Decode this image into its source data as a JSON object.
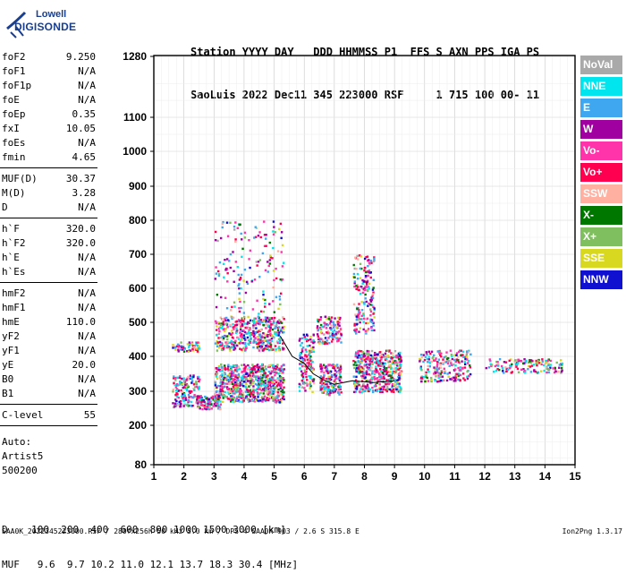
{
  "logo": {
    "line1": "Lowell",
    "line2": "DIGISONDE"
  },
  "header": {
    "line1": "Station YYYY DAY   DDD HHMMSS P1  FFS S AXN PPS IGA PS",
    "line2": "SaoLuis 2022 Dec11 345 223000 RSF     1 715 100 00- 11"
  },
  "params_group1": [
    {
      "k": "foF2",
      "v": "9.250"
    },
    {
      "k": "foF1",
      "v": "N/A"
    },
    {
      "k": "foF1p",
      "v": "N/A"
    },
    {
      "k": "foE",
      "v": "N/A"
    },
    {
      "k": "foEp",
      "v": "0.35"
    },
    {
      "k": "fxI",
      "v": "10.05"
    },
    {
      "k": "foEs",
      "v": "N/A"
    },
    {
      "k": "fmin",
      "v": "4.65"
    }
  ],
  "params_group2": [
    {
      "k": "MUF(D)",
      "v": "30.37"
    },
    {
      "k": "M(D)",
      "v": "3.28"
    },
    {
      "k": "D",
      "v": "N/A"
    }
  ],
  "params_group3": [
    {
      "k": "h`F",
      "v": "320.0"
    },
    {
      "k": "h`F2",
      "v": "320.0"
    },
    {
      "k": "h`E",
      "v": "N/A"
    },
    {
      "k": "h`Es",
      "v": "N/A"
    }
  ],
  "params_group4": [
    {
      "k": "hmF2",
      "v": "N/A"
    },
    {
      "k": "hmF1",
      "v": "N/A"
    },
    {
      "k": "hmE",
      "v": "110.0"
    },
    {
      "k": "yF2",
      "v": "N/A"
    },
    {
      "k": "yF1",
      "v": "N/A"
    },
    {
      "k": "yE",
      "v": "20.0"
    },
    {
      "k": "B0",
      "v": "N/A"
    },
    {
      "k": "B1",
      "v": "N/A"
    }
  ],
  "params_group5": [
    {
      "k": "C-level",
      "v": "55"
    }
  ],
  "autoscale": [
    "Auto:",
    "Artist5",
    "500200"
  ],
  "legend": [
    {
      "label": "NoVal",
      "color": "#a9a9a9"
    },
    {
      "label": "NNE",
      "color": "#00e5ee"
    },
    {
      "label": "E",
      "color": "#3fa7f0"
    },
    {
      "label": "W",
      "color": "#a000a0"
    },
    {
      "label": "Vo-",
      "color": "#ff33aa"
    },
    {
      "label": "Vo+",
      "color": "#ff0050"
    },
    {
      "label": "SSW",
      "color": "#ffb0a0"
    },
    {
      "label": "X-",
      "color": "#007800"
    },
    {
      "label": "X+",
      "color": "#7fbf5f"
    },
    {
      "label": "SSE",
      "color": "#d8d820"
    },
    {
      "label": "NNW",
      "color": "#1010d0"
    }
  ],
  "bottom": {
    "line1": "D    100  200  400  600  800 1000 1500 3000 [km]",
    "line2": "MUF   9.6  9.7 10.2 11.0 12.1 13.7 18.3 30.4 [MHz]"
  },
  "footer_left": "SAA0K_2022345223000.RSF / 280fx256h 50 kHz 5.0 km / DPS-4 SAA0K 903 / 2.6 S 315.8 E",
  "footer_right": "Ion2Png 1.3.17",
  "chart_data": {
    "type": "scatter",
    "title": "",
    "xlabel": "",
    "ylabel": "",
    "xlim": [
      1,
      15
    ],
    "ylim": [
      80,
      1280
    ],
    "x_ticks": [
      "1",
      "2",
      "3",
      "4",
      "5",
      "6",
      "7",
      "8",
      "9",
      "10",
      "11",
      "12",
      "13",
      "14",
      "15"
    ],
    "y_ticks": [
      "80",
      "200",
      "300",
      "400",
      "500",
      "600",
      "700",
      "800",
      "900",
      "1000",
      "1100",
      "1280"
    ],
    "trace_line": [
      [
        5.2,
        460
      ],
      [
        5.6,
        400
      ],
      [
        6.0,
        380
      ],
      [
        6.3,
        350
      ],
      [
        6.7,
        330
      ],
      [
        7.0,
        320
      ],
      [
        7.6,
        330
      ],
      [
        8.3,
        325
      ],
      [
        9.0,
        330
      ]
    ],
    "clusters": [
      {
        "x": [
          1.6,
          2.5
        ],
        "y": [
          255,
          350
        ],
        "n": 160
      },
      {
        "x": [
          1.6,
          2.5
        ],
        "y": [
          415,
          445
        ],
        "n": 60
      },
      {
        "x": [
          2.4,
          3.2
        ],
        "y": [
          250,
          290
        ],
        "n": 120
      },
      {
        "x": [
          3.0,
          5.3
        ],
        "y": [
          270,
          380
        ],
        "n": 700
      },
      {
        "x": [
          3.0,
          5.3
        ],
        "y": [
          420,
          520
        ],
        "n": 450
      },
      {
        "x": [
          3.0,
          5.3
        ],
        "y": [
          520,
          800
        ],
        "n": 160
      },
      {
        "x": [
          5.8,
          6.3
        ],
        "y": [
          300,
          470
        ],
        "n": 140
      },
      {
        "x": [
          6.5,
          7.2
        ],
        "y": [
          290,
          380
        ],
        "n": 180
      },
      {
        "x": [
          6.4,
          7.2
        ],
        "y": [
          440,
          520
        ],
        "n": 120
      },
      {
        "x": [
          7.6,
          9.2
        ],
        "y": [
          300,
          420
        ],
        "n": 500
      },
      {
        "x": [
          7.6,
          8.3
        ],
        "y": [
          470,
          700
        ],
        "n": 180
      },
      {
        "x": [
          9.8,
          11.5
        ],
        "y": [
          330,
          420
        ],
        "n": 220
      },
      {
        "x": [
          12.0,
          14.6
        ],
        "y": [
          355,
          395
        ],
        "n": 140
      }
    ]
  }
}
